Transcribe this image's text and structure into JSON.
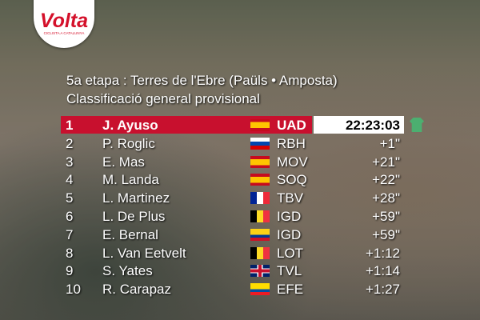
{
  "logo": {
    "title": "Volta",
    "subtitle": "CICLISTA A CATALUNYA"
  },
  "header": {
    "stage": "5a etapa : Terres de l'Ebre (Paüls • Amposta)",
    "classification": "Classificació general provisional"
  },
  "standings": {
    "rows": [
      [
        "1",
        "J. Ayuso",
        "UAD",
        "22:23:03"
      ],
      [
        "2",
        "P. Roglic",
        "RBH",
        "+1\""
      ],
      [
        "3",
        "E. Mas",
        "MOV",
        "+21\""
      ],
      [
        "4",
        "M. Landa",
        "SOQ",
        "+22\""
      ],
      [
        "5",
        "L. Martinez",
        "TBV",
        "+28\""
      ],
      [
        "6",
        "L. De Plus",
        "IGD",
        "+59\""
      ],
      [
        "7",
        "E. Bernal",
        "IGD",
        "+59\""
      ],
      [
        "8",
        "L. Van Eetvelt",
        "LOT",
        "+1:12"
      ],
      [
        "9",
        "S. Yates",
        "TVL",
        "+1:14"
      ],
      [
        "10",
        "R. Carapaz",
        "EFE",
        "+1:27"
      ]
    ]
  }
}
